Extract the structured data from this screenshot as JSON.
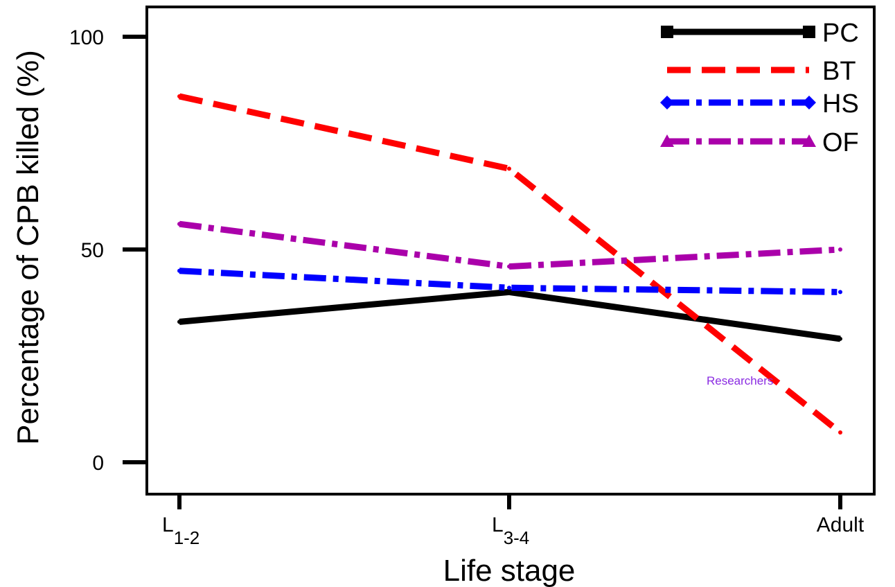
{
  "chart_data": {
    "type": "line",
    "title": "",
    "xlabel": "Life stage",
    "ylabel": "Percentage of CPB killed (%)",
    "categories": [
      {
        "main": "L",
        "sub": "1-2"
      },
      {
        "main": "L",
        "sub": "3-4"
      },
      {
        "main": "Adult",
        "sub": ""
      }
    ],
    "yticks": [
      "0",
      "50",
      "100"
    ],
    "ylim": [
      0,
      100
    ],
    "grid": false,
    "legend_position": "top-right",
    "series": [
      {
        "name": "PC",
        "values": [
          33,
          40,
          29
        ],
        "color": "#000000",
        "dash": "solid",
        "marker": "square"
      },
      {
        "name": "BT",
        "values": [
          86,
          69,
          7
        ],
        "color": "#ff0000",
        "dash": "dashed",
        "marker": "none"
      },
      {
        "name": "HS",
        "values": [
          45,
          41,
          40
        ],
        "color": "#0000ff",
        "dash": "dash-dot",
        "marker": "diamond"
      },
      {
        "name": "OF",
        "values": [
          56,
          46,
          50
        ],
        "color": "#aa00aa",
        "dash": "dash-dot",
        "marker": "triangle"
      }
    ],
    "annotations": [
      {
        "text": "Researchers",
        "color": "#8a2be2"
      }
    ]
  }
}
